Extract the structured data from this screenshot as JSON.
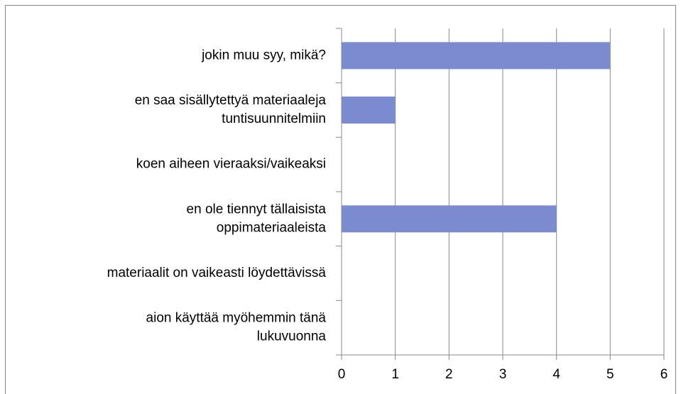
{
  "chart_data": {
    "type": "hbar",
    "categories": [
      "jokin muu syy, mikä?",
      "en saa sisällytettyä materiaaleja\ntuntisuunnitelmiin",
      "koen aiheen vieraaksi/vaikeaksi",
      "en ole tiennyt tällaisista\noppimateriaaleista",
      "materiaalit on vaikeasti löydettävissä",
      "aion käyttää myöhemmin tänä\nlukuvuonna"
    ],
    "values": [
      5,
      1,
      0,
      4,
      0,
      0
    ],
    "color": "#7b8bcf",
    "xlim": [
      0,
      6
    ],
    "xticks": [
      0,
      1,
      2,
      3,
      4,
      5,
      6
    ],
    "grid": true
  }
}
